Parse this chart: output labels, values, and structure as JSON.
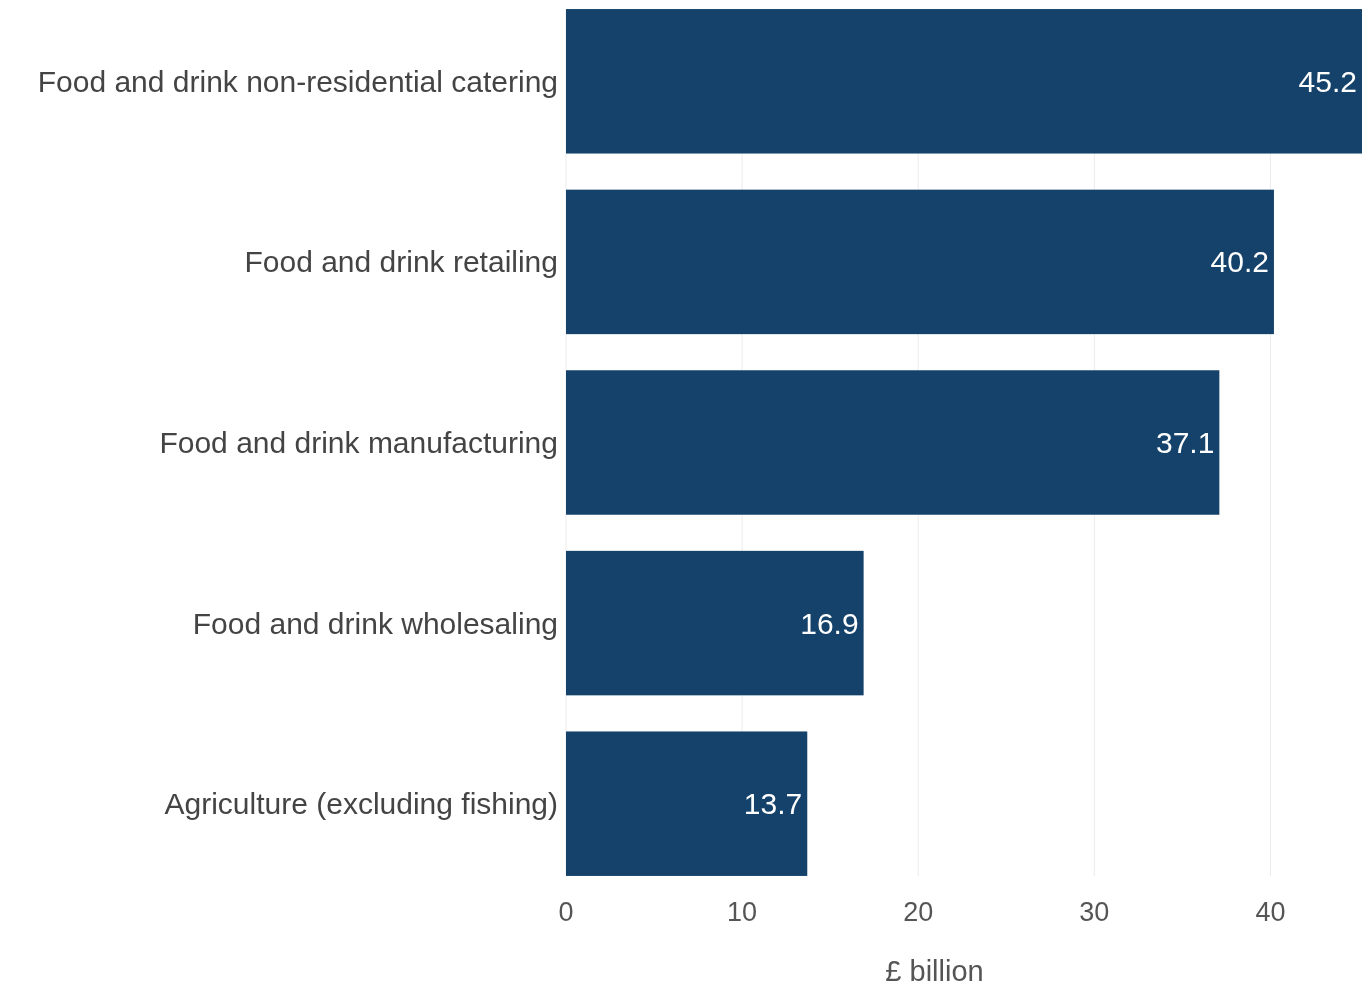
{
  "chart_data": {
    "type": "bar",
    "orientation": "horizontal",
    "categories": [
      "Food and drink non-residential catering",
      "Food and drink retailing",
      "Food and drink manufacturing",
      "Food and drink wholesaling",
      "Agriculture (excluding fishing)"
    ],
    "values": [
      45.2,
      40.2,
      37.1,
      16.9,
      13.7
    ],
    "color": "#15426a",
    "xlim": [
      0,
      45.2
    ],
    "xticks": [
      0,
      10,
      20,
      30,
      40
    ],
    "xlabel": "£ billion",
    "grid": "x",
    "data_labels": true
  }
}
